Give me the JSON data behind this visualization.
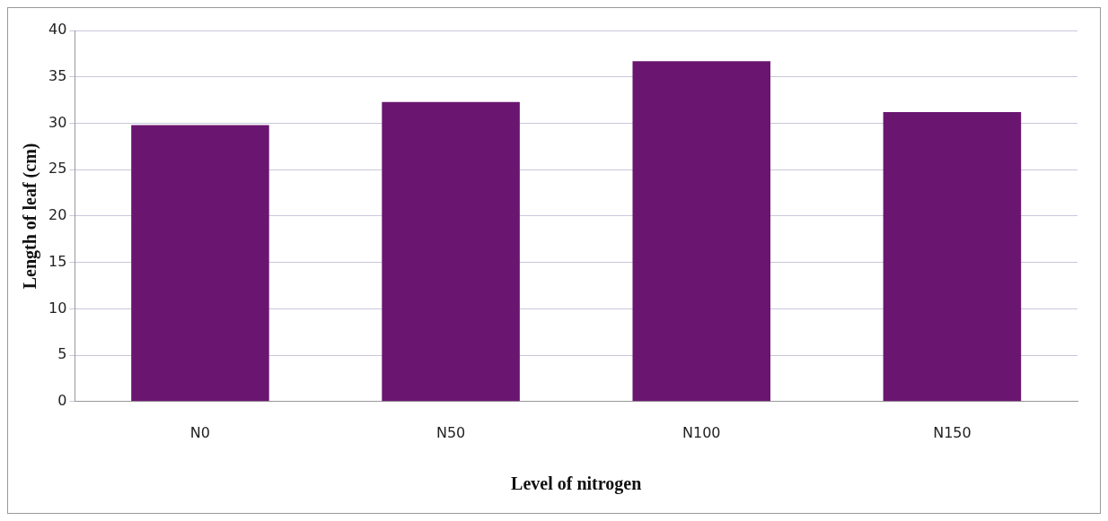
{
  "chart_data": {
    "type": "bar",
    "xlabel": "Level of nitrogen",
    "ylabel": "Length of leaf (cm)",
    "categories": [
      "N0",
      "N50",
      "N100",
      "N150"
    ],
    "values": [
      29.8,
      32.3,
      36.7,
      31.2
    ],
    "color": "#6a1670",
    "ylim": [
      0,
      40
    ],
    "yticks": [
      0,
      5,
      10,
      15,
      20,
      25,
      30,
      35,
      40
    ],
    "grid": "y",
    "legend": false
  }
}
